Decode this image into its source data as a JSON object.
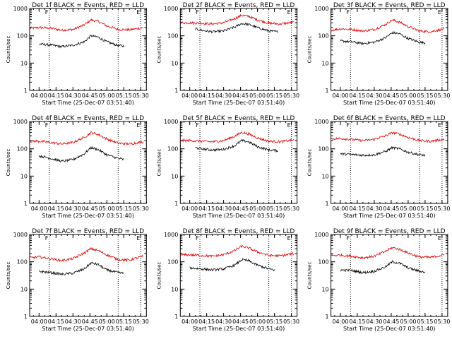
{
  "layout": {
    "cols": 3,
    "rows": 3
  },
  "shared": {
    "ylabel": "Counts/sec",
    "xlabel": "Start Time (25-Dec-07 03:51:40)",
    "ytick_labels": [
      "1",
      "10",
      "100",
      "1000"
    ],
    "xtick_labels": [
      "04:00",
      "04:15",
      "04:30",
      "04:45",
      "05:00",
      "05:15",
      "05:30"
    ],
    "top_marks": [
      "F",
      "E"
    ],
    "colors": {
      "events": "#000000",
      "lld": "#e00000",
      "frame": "#000000"
    }
  },
  "chart_data": [
    {
      "type": "line",
      "title": "Det 1f BLACK = Events, RED = LLD",
      "yscale": "log",
      "ylim": [
        1,
        1000
      ],
      "xlim": [
        "03:51:40",
        "05:35:00"
      ],
      "grid": false,
      "vlines": [
        "04:09:00",
        "05:10:00",
        "05:30:00"
      ],
      "series": [
        {
          "name": "LLD",
          "color": "#e00000",
          "x": [
            "03:52",
            "04:00",
            "04:10",
            "04:20",
            "04:30",
            "04:40",
            "04:46",
            "04:52",
            "05:00",
            "05:10",
            "05:20",
            "05:32"
          ],
          "y": [
            190,
            200,
            190,
            160,
            170,
            250,
            380,
            340,
            230,
            170,
            165,
            200
          ]
        },
        {
          "name": "Events",
          "color": "#000000",
          "x": [
            "04:00",
            "04:10",
            "04:20",
            "04:30",
            "04:40",
            "04:46",
            "04:52",
            "05:00",
            "05:10",
            "05:15"
          ],
          "y": [
            50,
            46,
            40,
            45,
            60,
            100,
            90,
            60,
            44,
            42
          ]
        }
      ]
    },
    {
      "type": "line",
      "title": "Det 2f BLACK = Events, RED = LLD",
      "yscale": "log",
      "ylim": [
        1,
        1000
      ],
      "xlim": [
        "03:51:40",
        "05:35:00"
      ],
      "grid": false,
      "vlines": [
        "04:09:00",
        "05:10:00",
        "05:30:00"
      ],
      "series": [
        {
          "name": "LLD",
          "color": "#e00000",
          "x": [
            "03:52",
            "04:00",
            "04:10",
            "04:20",
            "04:30",
            "04:40",
            "04:46",
            "04:52",
            "05:00",
            "05:10",
            "05:20",
            "05:32"
          ],
          "y": [
            300,
            300,
            290,
            270,
            300,
            430,
            560,
            520,
            380,
            290,
            270,
            310
          ]
        },
        {
          "name": "Events",
          "color": "#000000",
          "x": [
            "04:05",
            "04:10",
            "04:20",
            "04:30",
            "04:40",
            "04:46",
            "04:52",
            "05:00",
            "05:10",
            "05:18"
          ],
          "y": [
            180,
            160,
            140,
            150,
            210,
            280,
            260,
            200,
            150,
            140
          ]
        }
      ]
    },
    {
      "type": "line",
      "title": "Det 3f BLACK = Events, RED = LLD",
      "yscale": "log",
      "ylim": [
        1,
        1000
      ],
      "xlim": [
        "03:51:40",
        "05:35:00"
      ],
      "grid": false,
      "vlines": [
        "04:09:00",
        "05:10:00",
        "05:30:00"
      ],
      "series": [
        {
          "name": "LLD",
          "color": "#e00000",
          "x": [
            "03:52",
            "04:00",
            "04:10",
            "04:20",
            "04:30",
            "04:40",
            "04:46",
            "04:52",
            "05:00",
            "05:10",
            "05:20",
            "05:32"
          ],
          "y": [
            160,
            180,
            170,
            150,
            170,
            260,
            380,
            320,
            220,
            150,
            140,
            180
          ]
        },
        {
          "name": "Events",
          "color": "#000000",
          "x": [
            "04:00",
            "04:10",
            "04:20",
            "04:30",
            "04:40",
            "04:46",
            "04:52",
            "05:00",
            "05:10",
            "05:15"
          ],
          "y": [
            65,
            60,
            52,
            58,
            85,
            130,
            120,
            80,
            58,
            55
          ]
        }
      ]
    },
    {
      "type": "line",
      "title": "Det 4f BLACK = Events, RED = LLD",
      "yscale": "log",
      "ylim": [
        1,
        1000
      ],
      "xlim": [
        "03:51:40",
        "05:35:00"
      ],
      "grid": false,
      "vlines": [
        "04:09:00",
        "05:10:00",
        "05:30:00"
      ],
      "series": [
        {
          "name": "LLD",
          "color": "#e00000",
          "x": [
            "03:52",
            "04:00",
            "04:10",
            "04:20",
            "04:30",
            "04:40",
            "04:46",
            "04:52",
            "05:00",
            "05:10",
            "05:20",
            "05:32"
          ],
          "y": [
            190,
            190,
            170,
            150,
            170,
            260,
            390,
            340,
            230,
            160,
            150,
            180
          ]
        },
        {
          "name": "Events",
          "color": "#000000",
          "x": [
            "04:00",
            "04:10",
            "04:20",
            "04:30",
            "04:40",
            "04:46",
            "04:52",
            "05:00",
            "05:10",
            "05:15"
          ],
          "y": [
            55,
            45,
            35,
            40,
            65,
            110,
            95,
            60,
            45,
            40
          ]
        }
      ]
    },
    {
      "type": "line",
      "title": "Det 5f BLACK = Events, RED = LLD",
      "yscale": "log",
      "ylim": [
        1,
        1000
      ],
      "xlim": [
        "03:51:40",
        "05:35:00"
      ],
      "grid": false,
      "vlines": [
        "04:09:00",
        "05:10:00",
        "05:30:00"
      ],
      "series": [
        {
          "name": "LLD",
          "color": "#e00000",
          "x": [
            "03:52",
            "04:00",
            "04:10",
            "04:20",
            "04:30",
            "04:40",
            "04:46",
            "04:52",
            "05:00",
            "05:10",
            "05:20",
            "05:32"
          ],
          "y": [
            200,
            200,
            190,
            180,
            200,
            290,
            400,
            350,
            250,
            190,
            180,
            210
          ]
        },
        {
          "name": "Events",
          "color": "#000000",
          "x": [
            "04:05",
            "04:10",
            "04:20",
            "04:30",
            "04:40",
            "04:46",
            "04:52",
            "05:00",
            "05:10",
            "05:18"
          ],
          "y": [
            110,
            100,
            90,
            95,
            130,
            200,
            180,
            120,
            90,
            85
          ]
        }
      ]
    },
    {
      "type": "line",
      "title": "Det 6f BLACK = Events, RED = LLD",
      "yscale": "log",
      "ylim": [
        1,
        1000
      ],
      "xlim": [
        "03:51:40",
        "05:35:00"
      ],
      "grid": false,
      "vlines": [
        "04:09:00",
        "05:10:00",
        "05:30:00"
      ],
      "series": [
        {
          "name": "LLD",
          "color": "#e00000",
          "x": [
            "03:52",
            "04:00",
            "04:10",
            "04:20",
            "04:30",
            "04:40",
            "04:46",
            "04:52",
            "05:00",
            "05:10",
            "05:20",
            "05:32"
          ],
          "y": [
            230,
            240,
            220,
            200,
            220,
            300,
            390,
            350,
            260,
            200,
            190,
            220
          ]
        },
        {
          "name": "Events",
          "color": "#000000",
          "x": [
            "04:00",
            "04:10",
            "04:20",
            "04:30",
            "04:40",
            "04:46",
            "04:52",
            "05:00",
            "05:10",
            "05:15"
          ],
          "y": [
            65,
            62,
            58,
            60,
            80,
            110,
            100,
            75,
            60,
            58
          ]
        }
      ]
    },
    {
      "type": "line",
      "title": "Det 7f BLACK = Events, RED = LLD",
      "yscale": "log",
      "ylim": [
        1,
        1000
      ],
      "xlim": [
        "03:51:40",
        "05:35:00"
      ],
      "grid": false,
      "vlines": [
        "04:09:00",
        "05:10:00",
        "05:30:00"
      ],
      "series": [
        {
          "name": "LLD",
          "color": "#e00000",
          "x": [
            "03:52",
            "04:00",
            "04:10",
            "04:20",
            "04:30",
            "04:40",
            "04:46",
            "04:52",
            "05:00",
            "05:10",
            "05:20",
            "05:32"
          ],
          "y": [
            140,
            150,
            130,
            110,
            130,
            210,
            300,
            260,
            180,
            120,
            115,
            160
          ]
        },
        {
          "name": "Events",
          "color": "#000000",
          "x": [
            "04:00",
            "04:10",
            "04:20",
            "04:30",
            "04:40",
            "04:46",
            "04:52",
            "05:00",
            "05:10",
            "05:15"
          ],
          "y": [
            45,
            40,
            35,
            38,
            55,
            90,
            80,
            50,
            40,
            38
          ]
        }
      ]
    },
    {
      "type": "line",
      "title": "Det 8f BLACK = Events, RED = LLD",
      "yscale": "log",
      "ylim": [
        1,
        1000
      ],
      "xlim": [
        "03:51:40",
        "05:35:00"
      ],
      "grid": false,
      "vlines": [
        "04:09:00",
        "05:10:00",
        "05:30:00"
      ],
      "series": [
        {
          "name": "LLD",
          "color": "#e00000",
          "x": [
            "03:52",
            "04:00",
            "04:10",
            "04:20",
            "04:30",
            "04:40",
            "04:46",
            "04:52",
            "05:00",
            "05:10",
            "05:20",
            "05:32"
          ],
          "y": [
            180,
            180,
            170,
            160,
            180,
            260,
            370,
            320,
            230,
            170,
            165,
            200
          ]
        },
        {
          "name": "Events",
          "color": "#000000",
          "x": [
            "04:00",
            "04:10",
            "04:20",
            "04:30",
            "04:40",
            "04:46",
            "04:52",
            "05:00",
            "05:10",
            "05:15"
          ],
          "y": [
            60,
            55,
            50,
            55,
            75,
            120,
            110,
            75,
            55,
            50
          ]
        }
      ]
    },
    {
      "type": "line",
      "title": "Det 9f BLACK = Events, RED = LLD",
      "yscale": "log",
      "ylim": [
        1,
        1000
      ],
      "xlim": [
        "03:51:40",
        "05:35:00"
      ],
      "grid": false,
      "vlines": [
        "04:09:00",
        "05:10:00",
        "05:30:00"
      ],
      "series": [
        {
          "name": "LLD",
          "color": "#e00000",
          "x": [
            "03:52",
            "04:00",
            "04:10",
            "04:20",
            "04:30",
            "04:40",
            "04:46",
            "04:52",
            "05:00",
            "05:10",
            "05:20",
            "05:32"
          ],
          "y": [
            170,
            175,
            160,
            140,
            160,
            240,
            330,
            290,
            210,
            150,
            145,
            180
          ]
        },
        {
          "name": "Events",
          "color": "#000000",
          "x": [
            "04:00",
            "04:10",
            "04:20",
            "04:30",
            "04:40",
            "04:46",
            "04:52",
            "05:00",
            "05:10",
            "05:15"
          ],
          "y": [
            50,
            48,
            40,
            45,
            65,
            100,
            90,
            60,
            45,
            42
          ]
        }
      ]
    }
  ]
}
